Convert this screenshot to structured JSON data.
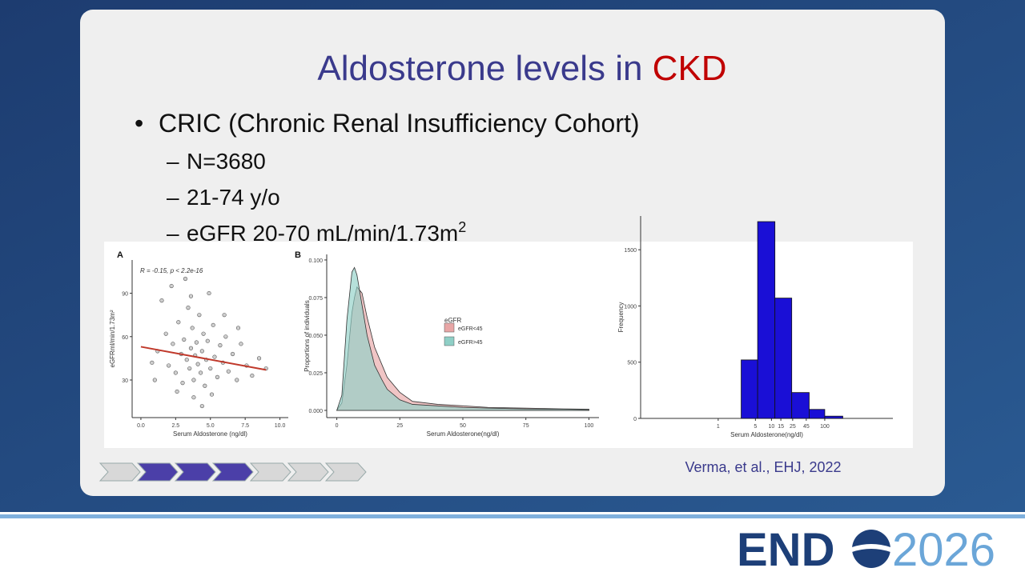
{
  "slide": {
    "title_main": "Aldosterone levels in ",
    "title_highlight": "CKD",
    "bullet": "CRIC (Chronic Renal Insufficiency Cohort)",
    "sub_bullets": [
      "N=3680",
      "21-74 y/o",
      "eGFR 20-70 mL/min/1.73m"
    ],
    "sub_bullet_superscript": "2",
    "citation": "Verma, et al., EHJ, 2022"
  },
  "footer": {
    "logo_left": "END",
    "logo_right": "2026"
  },
  "chart_data": [
    {
      "type": "scatter",
      "panel": "A",
      "annotation": "R = -0.15, p < 2.2e-16",
      "x_label": "Serum Aldosterone (ng/dl)",
      "y_label": "eGFRml/min/1.73m²",
      "color": "#555555",
      "x": [
        1.2,
        1.8,
        2.0,
        2.3,
        2.5,
        2.7,
        2.9,
        3.0,
        3.1,
        3.3,
        3.4,
        3.5,
        3.6,
        3.7,
        3.8,
        3.9,
        4.0,
        4.1,
        4.2,
        4.3,
        4.4,
        4.5,
        4.6,
        4.7,
        4.8,
        5.0,
        5.2,
        5.3,
        5.5,
        5.7,
        5.9,
        6.1,
        6.3,
        6.6,
        6.9,
        7.2,
        7.6,
        8.0,
        8.5,
        1.5,
        2.2,
        3.2,
        4.9,
        1.0,
        2.6,
        3.8,
        5.1,
        6.0,
        7.0,
        0.8,
        9.0,
        4.4,
        3.6
      ],
      "values": [
        50,
        62,
        40,
        55,
        35,
        70,
        48,
        28,
        58,
        44,
        80,
        38,
        52,
        66,
        30,
        47,
        56,
        41,
        75,
        35,
        50,
        62,
        26,
        44,
        57,
        38,
        68,
        46,
        32,
        54,
        42,
        60,
        36,
        48,
        30,
        55,
        40,
        33,
        45,
        85,
        95,
        100,
        90,
        30,
        22,
        18,
        20,
        75,
        66,
        42,
        38,
        12,
        88
      ],
      "fit": {
        "color": "#c0392b",
        "x": [
          0,
          9
        ],
        "values": [
          53,
          37
        ]
      },
      "xlim": [
        -0.63,
        10.6
      ],
      "ylim": [
        4,
        113
      ],
      "xticks": [
        {
          "value": 0,
          "label": "0.0"
        },
        2.5,
        {
          "value": 5,
          "label": "5.0"
        },
        7.5,
        {
          "value": 10,
          "label": "10.0"
        }
      ],
      "yticks": [
        30,
        60,
        90
      ]
    },
    {
      "type": "area",
      "panel": "B",
      "x_label": "Serum Aldosterone(ng/dl)",
      "y_label": "Proportions of individuals",
      "legend_title": "eGFR",
      "x": [
        0,
        2,
        4,
        6,
        7,
        8,
        10,
        12,
        15,
        18,
        20,
        25,
        30,
        40,
        50,
        60,
        75,
        90,
        100
      ],
      "series": [
        {
          "name": "eGFR<45",
          "color": "#e8a6a6",
          "values": [
            0,
            0.005,
            0.03,
            0.065,
            0.075,
            0.082,
            0.078,
            0.062,
            0.042,
            0.03,
            0.022,
            0.012,
            0.006,
            0.004,
            0.003,
            0.002,
            0.0015,
            0.001,
            0.0008
          ]
        },
        {
          "name": "eGFR>45",
          "color": "#8fcfc6",
          "values": [
            0,
            0.01,
            0.06,
            0.092,
            0.095,
            0.09,
            0.07,
            0.05,
            0.03,
            0.02,
            0.014,
            0.007,
            0.004,
            0.003,
            0.002,
            0.0015,
            0.001,
            0.0008,
            0.0005
          ]
        }
      ],
      "xlim": [
        -4,
        104
      ],
      "ylim": [
        -0.0048,
        0.1037
      ],
      "xticks": [
        0,
        25,
        50,
        75,
        100
      ],
      "yticks": [
        {
          "value": 0,
          "label": "0.000"
        },
        {
          "value": 0.025,
          "label": "0.025"
        },
        {
          "value": 0.05,
          "label": "0.050"
        },
        {
          "value": 0.075,
          "label": "0.075"
        },
        {
          "value": 0.1,
          "label": "0.100"
        }
      ]
    },
    {
      "type": "histogram",
      "x_label": "Serum Aldosterone(ng/dl)",
      "y_label": "Frequency",
      "color": "#1a0fd6",
      "log_x": true,
      "bins": [
        2.7,
        5.5,
        11.6,
        24,
        51,
        100,
        218
      ],
      "values": [
        520,
        1750,
        1070,
        230,
        80,
        20
      ],
      "xlim": [
        0.035,
        1900
      ],
      "ylim": [
        0,
        1800
      ],
      "xticks": [
        1,
        5,
        10,
        15,
        25,
        45,
        100
      ],
      "yticks": [
        0,
        500,
        1000,
        1500
      ]
    }
  ]
}
